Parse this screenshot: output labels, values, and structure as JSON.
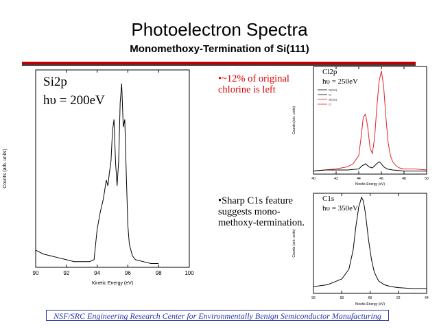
{
  "slide": {
    "title": "Photoelectron Spectra",
    "subtitle": "Monomethoxy-Termination of Si(111)",
    "note_chlorine": "•~12% of original chlorine is left",
    "note_c1s": "•Sharp C1s feature suggests mono-methoxy-termination.",
    "footer": "NSF/SRC Engineering Research Center for Environmentally Benign Semiconductor Manufacturing"
  },
  "colors": {
    "accent_red": "#c00000",
    "footer_blue": "#2233aa",
    "trace_red": "#dd2222"
  },
  "chart_data": [
    {
      "id": "si2p",
      "type": "line",
      "title": "Si2p",
      "subtitle": "hυ = 200eV",
      "xlabel": "Kinetic Energy (eV)",
      "ylabel": "Counts (arb. units)",
      "xlim": [
        90,
        100
      ],
      "ylim": [
        0,
        1
      ],
      "xticks": [
        90,
        92,
        94,
        96,
        98,
        100
      ],
      "series": [
        {
          "x": [
            90.0,
            90.5,
            91.0,
            91.5,
            92.0,
            92.5,
            93.0,
            93.5,
            93.8,
            94.0,
            94.2,
            94.4,
            94.6,
            94.7,
            94.8,
            94.9,
            95.0,
            95.1,
            95.2,
            95.3,
            95.4,
            95.5,
            95.6,
            95.7,
            95.8,
            95.9,
            96.0,
            96.1,
            96.3,
            96.5,
            97.0,
            97.5,
            98.0
          ],
          "y": [
            0.09,
            0.07,
            0.06,
            0.05,
            0.04,
            0.03,
            0.03,
            0.03,
            0.04,
            0.2,
            0.29,
            0.36,
            0.46,
            0.43,
            0.5,
            0.56,
            0.72,
            0.78,
            0.55,
            0.43,
            0.56,
            0.87,
            0.97,
            0.74,
            0.78,
            0.48,
            0.22,
            0.12,
            0.06,
            0.04,
            0.03,
            0.02,
            0.02
          ]
        }
      ]
    },
    {
      "id": "cl2p",
      "type": "line",
      "title": "Cl2p",
      "subtitle": "hυ = 250eV",
      "xlabel": "Kinetic Energy (eV)",
      "ylabel": "Counts (arb. units)",
      "xlim": [
        40,
        50
      ],
      "ylim": [
        0,
        1
      ],
      "xticks": [
        40,
        42,
        44,
        46,
        48,
        50
      ],
      "series": [
        {
          "color": "red",
          "x": [
            40.0,
            41.0,
            42.0,
            43.0,
            43.5,
            44.0,
            44.2,
            44.4,
            44.6,
            44.8,
            45.0,
            45.2,
            45.4,
            45.6,
            45.8,
            46.0,
            46.2,
            46.4,
            46.6,
            46.8,
            47.0,
            47.3,
            47.6,
            48.0,
            49.0,
            50.0
          ],
          "y": [
            0.03,
            0.04,
            0.05,
            0.07,
            0.1,
            0.18,
            0.35,
            0.55,
            0.58,
            0.45,
            0.25,
            0.2,
            0.35,
            0.65,
            0.9,
            1.0,
            0.85,
            0.55,
            0.3,
            0.18,
            0.12,
            0.08,
            0.06,
            0.05,
            0.05,
            0.04
          ]
        },
        {
          "color": "black",
          "x": [
            40.0,
            41.0,
            42.0,
            43.0,
            44.0,
            44.3,
            44.6,
            44.9,
            45.2,
            45.5,
            45.8,
            46.0,
            46.2,
            46.5,
            47.0,
            48.0,
            49.0,
            50.0
          ],
          "y": [
            0.03,
            0.04,
            0.04,
            0.04,
            0.05,
            0.08,
            0.1,
            0.07,
            0.06,
            0.09,
            0.12,
            0.1,
            0.07,
            0.05,
            0.04,
            0.03,
            0.03,
            0.03
          ]
        }
      ],
      "legend_lines": [
        "Si(111)",
        "Cl",
        "Si(111)",
        "Cl"
      ]
    },
    {
      "id": "c1s",
      "type": "line",
      "title": "C1s",
      "subtitle": "hυ = 350eV",
      "xlabel": "Kinetic Energy (eV)",
      "ylabel": "Counts (arb. units)",
      "xlim": [
        56,
        64
      ],
      "ylim": [
        0,
        1
      ],
      "xticks": [
        56,
        58,
        60,
        62,
        64
      ],
      "series": [
        {
          "x": [
            56.0,
            56.5,
            57.0,
            57.5,
            58.0,
            58.5,
            58.8,
            59.0,
            59.2,
            59.4,
            59.5,
            59.6,
            59.7,
            59.9,
            60.1,
            60.3,
            60.6,
            61.0,
            61.5,
            62.0,
            63.0,
            64.0
          ],
          "y": [
            0.07,
            0.08,
            0.09,
            0.12,
            0.15,
            0.25,
            0.45,
            0.7,
            0.9,
            1.0,
            0.97,
            0.9,
            0.8,
            0.55,
            0.35,
            0.22,
            0.13,
            0.09,
            0.07,
            0.06,
            0.05,
            0.05
          ]
        }
      ]
    }
  ]
}
